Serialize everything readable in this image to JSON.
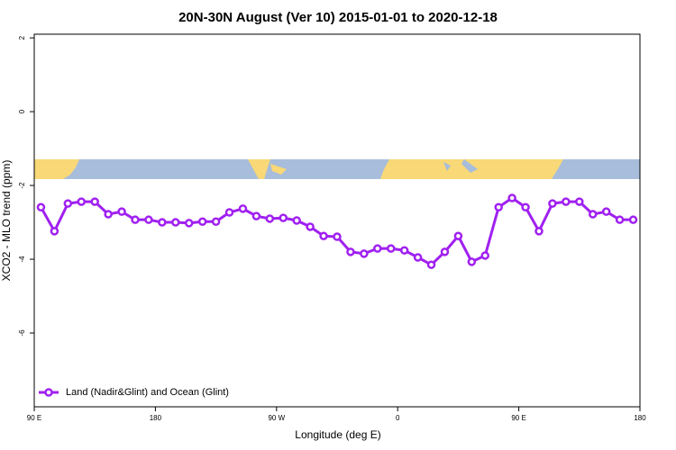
{
  "chart_data": {
    "type": "line",
    "title": "20N-30N August (Ver 10)   2015-01-01 to 2020-12-18",
    "xlabel": "Longitude (deg E)",
    "ylabel": "XCO2 - MLO trend (ppm)",
    "xlim": [
      90,
      540
    ],
    "xticks": [
      {
        "value": 90,
        "label": "90 E"
      },
      180,
      {
        "value": 270,
        "label": "90 W"
      },
      {
        "value": 360,
        "label": "0"
      },
      {
        "value": 450,
        "label": "90 E"
      },
      {
        "value": 540,
        "label": "180"
      }
    ],
    "ylim": [
      -8,
      2.1
    ],
    "yticks": [
      2,
      0,
      -2,
      -4,
      -6
    ],
    "legend": "bottom-left",
    "x": [
      95,
      105,
      115,
      125,
      135,
      145,
      155,
      165,
      175,
      185,
      195,
      205,
      215,
      225,
      235,
      245,
      255,
      265,
      275,
      285,
      295,
      305,
      315,
      325,
      335,
      345,
      355,
      365,
      375,
      385,
      395,
      405,
      415,
      425,
      435,
      445,
      455,
      465,
      475,
      485,
      495,
      505,
      515,
      525,
      535
    ],
    "series": [
      {
        "name": "Land (Nadir&Glint) and Ocean (Glint)",
        "color": "#a020f0",
        "values": [
          -2.59,
          -3.24,
          -2.49,
          -2.44,
          -2.44,
          -2.78,
          -2.71,
          -2.93,
          -2.93,
          -3.0,
          -3.0,
          -3.02,
          -2.98,
          -2.98,
          -2.73,
          -2.63,
          -2.83,
          -2.9,
          -2.88,
          -2.95,
          -3.12,
          -3.37,
          -3.39,
          -3.8,
          -3.85,
          -3.71,
          -3.71,
          -3.76,
          -3.95,
          -4.15,
          -3.8,
          -3.37,
          -4.07,
          -3.9,
          -2.59,
          -2.34,
          -2.59,
          -3.24,
          -2.49,
          -2.44,
          -2.44,
          -2.78,
          -2.71,
          -2.93,
          -2.93
        ]
      }
    ]
  }
}
